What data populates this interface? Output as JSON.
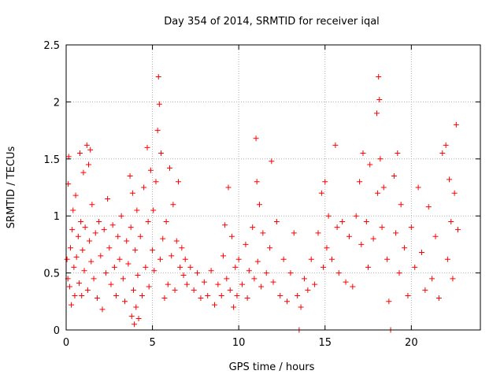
{
  "chart_data": {
    "type": "scatter",
    "title": "Day 354 of 2014, SRMTID for receiver iqal",
    "xlabel": "GPS time / hours",
    "ylabel": "SRMTID / TECUs",
    "xlim": [
      0,
      24
    ],
    "ylim": [
      0,
      2.5
    ],
    "xticks": [
      0,
      5,
      10,
      15,
      20
    ],
    "yticks": [
      0,
      0.5,
      1,
      1.5,
      2,
      2.5
    ],
    "xtick_labels": [
      "0",
      "5",
      "10",
      "15",
      "20"
    ],
    "ytick_labels": [
      "0",
      "0.5",
      "1",
      "1.5",
      "2",
      "2.5"
    ],
    "grid": true,
    "marker": "+",
    "color": "#ff0000",
    "series": [
      {
        "name": "SRMTID",
        "points": [
          [
            0.05,
            0.62
          ],
          [
            0.1,
            0.45
          ],
          [
            0.12,
            1.28
          ],
          [
            0.15,
            1.52
          ],
          [
            0.2,
            0.38
          ],
          [
            0.25,
            0.72
          ],
          [
            0.3,
            0.22
          ],
          [
            0.35,
            0.88
          ],
          [
            0.4,
            1.05
          ],
          [
            0.45,
            0.55
          ],
          [
            0.5,
            0.3
          ],
          [
            0.55,
            1.18
          ],
          [
            0.6,
            0.64
          ],
          [
            0.7,
            0.82
          ],
          [
            0.75,
            0.41
          ],
          [
            0.8,
            1.55
          ],
          [
            0.85,
            0.95
          ],
          [
            0.9,
            0.3
          ],
          [
            0.95,
            0.7
          ],
          [
            1.0,
            1.38
          ],
          [
            1.05,
            0.52
          ],
          [
            1.1,
            0.9
          ],
          [
            1.2,
            1.62
          ],
          [
            1.25,
            0.35
          ],
          [
            1.3,
            1.45
          ],
          [
            1.35,
            0.78
          ],
          [
            1.4,
            1.58
          ],
          [
            1.45,
            0.6
          ],
          [
            1.5,
            1.1
          ],
          [
            1.6,
            0.45
          ],
          [
            1.7,
            0.85
          ],
          [
            1.8,
            0.28
          ],
          [
            1.9,
            0.95
          ],
          [
            2.0,
            0.65
          ],
          [
            2.1,
            0.18
          ],
          [
            2.2,
            0.88
          ],
          [
            2.3,
            0.5
          ],
          [
            2.4,
            1.15
          ],
          [
            2.5,
            0.72
          ],
          [
            2.6,
            0.4
          ],
          [
            2.7,
            0.92
          ],
          [
            2.8,
            0.55
          ],
          [
            2.9,
            0.3
          ],
          [
            3.0,
            0.82
          ],
          [
            3.1,
            0.62
          ],
          [
            3.2,
            1.0
          ],
          [
            3.3,
            0.45
          ],
          [
            3.4,
            0.25
          ],
          [
            3.5,
            0.78
          ],
          [
            3.6,
            0.58
          ],
          [
            3.7,
            1.35
          ],
          [
            3.75,
            0.9
          ],
          [
            3.8,
            0.12
          ],
          [
            3.85,
            1.2
          ],
          [
            3.9,
            0.35
          ],
          [
            3.95,
            0.05
          ],
          [
            4.0,
            0.7
          ],
          [
            4.05,
            0.2
          ],
          [
            4.1,
            1.05
          ],
          [
            4.15,
            0.48
          ],
          [
            4.2,
            0.1
          ],
          [
            4.3,
            0.82
          ],
          [
            4.4,
            0.3
          ],
          [
            4.5,
            1.25
          ],
          [
            4.6,
            0.55
          ],
          [
            4.7,
            1.6
          ],
          [
            4.75,
            0.95
          ],
          [
            4.8,
            0.38
          ],
          [
            4.9,
            1.4
          ],
          [
            5.0,
            0.7
          ],
          [
            5.05,
            1.05
          ],
          [
            5.1,
            0.52
          ],
          [
            5.2,
            1.3
          ],
          [
            5.3,
            1.75
          ],
          [
            5.35,
            2.22
          ],
          [
            5.4,
            1.98
          ],
          [
            5.45,
            0.62
          ],
          [
            5.5,
            1.55
          ],
          [
            5.6,
            0.8
          ],
          [
            5.7,
            0.28
          ],
          [
            5.8,
            0.95
          ],
          [
            5.9,
            0.4
          ],
          [
            6.0,
            1.42
          ],
          [
            6.1,
            0.65
          ],
          [
            6.2,
            1.1
          ],
          [
            6.3,
            0.35
          ],
          [
            6.4,
            0.78
          ],
          [
            6.5,
            1.3
          ],
          [
            6.6,
            0.55
          ],
          [
            6.7,
            0.72
          ],
          [
            6.8,
            0.48
          ],
          [
            6.9,
            0.62
          ],
          [
            7.0,
            0.4
          ],
          [
            7.2,
            0.55
          ],
          [
            7.4,
            0.35
          ],
          [
            7.6,
            0.5
          ],
          [
            7.8,
            0.28
          ],
          [
            8.0,
            0.42
          ],
          [
            8.2,
            0.3
          ],
          [
            8.4,
            0.52
          ],
          [
            8.6,
            0.22
          ],
          [
            8.8,
            0.4
          ],
          [
            9.0,
            0.3
          ],
          [
            9.1,
            0.65
          ],
          [
            9.2,
            0.92
          ],
          [
            9.3,
            0.45
          ],
          [
            9.4,
            1.25
          ],
          [
            9.5,
            0.35
          ],
          [
            9.6,
            0.82
          ],
          [
            9.7,
            0.2
          ],
          [
            9.8,
            0.55
          ],
          [
            9.9,
            0.3
          ],
          [
            10.0,
            0.62
          ],
          [
            10.2,
            0.4
          ],
          [
            10.4,
            0.75
          ],
          [
            10.5,
            0.28
          ],
          [
            10.6,
            0.52
          ],
          [
            10.8,
            0.9
          ],
          [
            10.9,
            0.45
          ],
          [
            11.0,
            1.68
          ],
          [
            11.05,
            1.3
          ],
          [
            11.1,
            0.6
          ],
          [
            11.2,
            1.1
          ],
          [
            11.3,
            0.38
          ],
          [
            11.4,
            0.85
          ],
          [
            11.6,
            0.5
          ],
          [
            11.8,
            0.72
          ],
          [
            11.9,
            1.48
          ],
          [
            12.0,
            0.42
          ],
          [
            12.2,
            0.95
          ],
          [
            12.4,
            0.3
          ],
          [
            12.6,
            0.62
          ],
          [
            12.8,
            0.25
          ],
          [
            13.0,
            0.5
          ],
          [
            13.2,
            0.85
          ],
          [
            13.4,
            0.3
          ],
          [
            13.5,
            0.0
          ],
          [
            13.6,
            0.2
          ],
          [
            13.8,
            0.45
          ],
          [
            14.0,
            0.35
          ],
          [
            14.2,
            0.62
          ],
          [
            14.4,
            0.4
          ],
          [
            14.6,
            0.85
          ],
          [
            14.8,
            1.2
          ],
          [
            14.9,
            0.55
          ],
          [
            15.0,
            1.3
          ],
          [
            15.1,
            0.72
          ],
          [
            15.2,
            1.0
          ],
          [
            15.4,
            0.62
          ],
          [
            15.6,
            1.62
          ],
          [
            15.7,
            0.9
          ],
          [
            15.8,
            0.5
          ],
          [
            16.0,
            0.95
          ],
          [
            16.2,
            0.42
          ],
          [
            16.4,
            0.82
          ],
          [
            16.6,
            0.38
          ],
          [
            16.8,
            1.0
          ],
          [
            17.0,
            1.3
          ],
          [
            17.1,
            0.75
          ],
          [
            17.2,
            1.55
          ],
          [
            17.4,
            0.95
          ],
          [
            17.5,
            0.55
          ],
          [
            17.6,
            1.45
          ],
          [
            17.8,
            0.8
          ],
          [
            18.0,
            1.9
          ],
          [
            18.05,
            1.2
          ],
          [
            18.1,
            2.22
          ],
          [
            18.15,
            2.02
          ],
          [
            18.2,
            1.5
          ],
          [
            18.3,
            0.9
          ],
          [
            18.4,
            1.25
          ],
          [
            18.6,
            0.62
          ],
          [
            18.7,
            0.25
          ],
          [
            18.8,
            0.0
          ],
          [
            19.0,
            1.35
          ],
          [
            19.1,
            0.85
          ],
          [
            19.2,
            1.55
          ],
          [
            19.3,
            0.5
          ],
          [
            19.4,
            1.1
          ],
          [
            19.6,
            0.72
          ],
          [
            19.8,
            0.3
          ],
          [
            20.0,
            0.9
          ],
          [
            20.2,
            0.55
          ],
          [
            20.4,
            1.25
          ],
          [
            20.6,
            0.68
          ],
          [
            20.8,
            0.35
          ],
          [
            21.0,
            1.08
          ],
          [
            21.2,
            0.45
          ],
          [
            21.4,
            0.82
          ],
          [
            21.6,
            0.28
          ],
          [
            21.8,
            1.55
          ],
          [
            22.0,
            1.62
          ],
          [
            22.1,
            0.62
          ],
          [
            22.2,
            1.32
          ],
          [
            22.3,
            0.95
          ],
          [
            22.4,
            0.45
          ],
          [
            22.5,
            1.2
          ],
          [
            22.6,
            1.8
          ],
          [
            22.7,
            0.88
          ]
        ]
      }
    ]
  }
}
